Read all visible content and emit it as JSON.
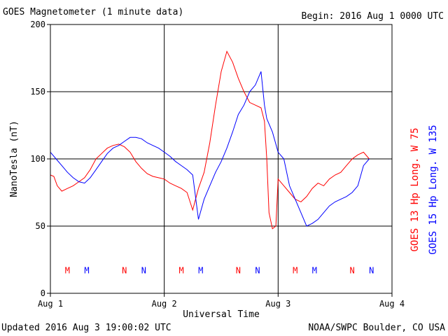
{
  "header": {
    "title": "GOES Magnetometer (1 minute data)",
    "begin": "Begin:  2016 Aug 1 0000 UTC"
  },
  "footer": {
    "updated": "Updated 2016 Aug  3 19:00:02 UTC",
    "credit": "NOAA/SWPC Boulder, CO USA"
  },
  "colors": {
    "goes13": "#ff0000",
    "goes15": "#0000ff",
    "grid": "#000000"
  },
  "chart_data": {
    "type": "line",
    "title": "GOES Magnetometer (1 minute data)",
    "xlabel": "Universal Time",
    "ylabel": "NanoTesla (nT)",
    "xlim": [
      0,
      3
    ],
    "ylim": [
      0,
      200
    ],
    "grid": true,
    "x_ticks": [
      {
        "value": 0,
        "label": "Aug 1"
      },
      {
        "value": 1,
        "label": "Aug 2"
      },
      {
        "value": 2,
        "label": "Aug 3"
      },
      {
        "value": 3,
        "label": "Aug 4"
      }
    ],
    "y_ticks": [
      {
        "value": 0,
        "label": "0"
      },
      {
        "value": 50,
        "label": "50"
      },
      {
        "value": 100,
        "label": "100"
      },
      {
        "value": 150,
        "label": "150"
      },
      {
        "value": 200,
        "label": "200"
      }
    ],
    "series": [
      {
        "name": "GOES 13 Hp  Long. W 75",
        "color": "#ff0000",
        "x": [
          0,
          0.03,
          0.06,
          0.1,
          0.15,
          0.2,
          0.25,
          0.3,
          0.35,
          0.4,
          0.45,
          0.5,
          0.55,
          0.6,
          0.65,
          0.7,
          0.75,
          0.8,
          0.85,
          0.9,
          0.95,
          1.0,
          1.05,
          1.1,
          1.15,
          1.2,
          1.25,
          1.3,
          1.35,
          1.4,
          1.45,
          1.5,
          1.55,
          1.6,
          1.65,
          1.7,
          1.75,
          1.8,
          1.85,
          1.88,
          1.9,
          1.92,
          1.95,
          1.98,
          2.0,
          2.05,
          2.1,
          2.15,
          2.2,
          2.25,
          2.3,
          2.35,
          2.4,
          2.45,
          2.5,
          2.55,
          2.6,
          2.65,
          2.7,
          2.75,
          2.8
        ],
        "values": [
          88,
          87,
          80,
          76,
          78,
          80,
          83,
          86,
          92,
          100,
          104,
          108,
          110,
          111,
          109,
          105,
          98,
          93,
          89,
          87,
          86,
          85,
          82,
          80,
          78,
          75,
          62,
          78,
          90,
          112,
          140,
          165,
          180,
          172,
          160,
          150,
          142,
          140,
          138,
          128,
          100,
          60,
          48,
          50,
          85,
          80,
          75,
          70,
          68,
          72,
          78,
          82,
          80,
          85,
          88,
          90,
          95,
          100,
          103,
          105,
          100
        ]
      },
      {
        "name": "GOES 15 Hp  Long. W 135",
        "color": "#0000ff",
        "x": [
          0,
          0.05,
          0.1,
          0.15,
          0.2,
          0.25,
          0.3,
          0.35,
          0.4,
          0.45,
          0.5,
          0.55,
          0.6,
          0.65,
          0.7,
          0.75,
          0.8,
          0.85,
          0.9,
          0.95,
          1.0,
          1.05,
          1.1,
          1.15,
          1.2,
          1.25,
          1.3,
          1.35,
          1.4,
          1.45,
          1.5,
          1.55,
          1.6,
          1.65,
          1.7,
          1.75,
          1.8,
          1.85,
          1.88,
          1.9,
          1.95,
          2.0,
          2.05,
          2.1,
          2.15,
          2.2,
          2.25,
          2.3,
          2.35,
          2.4,
          2.45,
          2.5,
          2.55,
          2.6,
          2.65,
          2.7,
          2.75,
          2.8
        ],
        "values": [
          105,
          100,
          95,
          90,
          86,
          83,
          82,
          86,
          92,
          98,
          104,
          108,
          110,
          113,
          116,
          116,
          115,
          112,
          110,
          108,
          105,
          102,
          98,
          95,
          92,
          88,
          55,
          70,
          80,
          90,
          98,
          108,
          120,
          133,
          140,
          150,
          155,
          165,
          140,
          130,
          120,
          105,
          100,
          80,
          70,
          60,
          50,
          52,
          55,
          60,
          65,
          68,
          70,
          72,
          75,
          80,
          95,
          100
        ]
      }
    ],
    "side_labels": [
      {
        "text": "GOES 13 Hp  Long. W 75",
        "color": "#ff0000"
      },
      {
        "text": "GOES 15 Hp  Long. W 135",
        "color": "#0000ff"
      }
    ],
    "markers": [
      {
        "label": "M",
        "x": 0.15,
        "y": 17,
        "color": "#ff0000"
      },
      {
        "label": "M",
        "x": 0.32,
        "y": 17,
        "color": "#0000ff"
      },
      {
        "label": "N",
        "x": 0.65,
        "y": 17,
        "color": "#ff0000"
      },
      {
        "label": "N",
        "x": 0.82,
        "y": 17,
        "color": "#0000ff"
      },
      {
        "label": "M",
        "x": 1.15,
        "y": 17,
        "color": "#ff0000"
      },
      {
        "label": "M",
        "x": 1.32,
        "y": 17,
        "color": "#0000ff"
      },
      {
        "label": "N",
        "x": 1.65,
        "y": 17,
        "color": "#ff0000"
      },
      {
        "label": "N",
        "x": 1.82,
        "y": 17,
        "color": "#0000ff"
      },
      {
        "label": "M",
        "x": 2.15,
        "y": 17,
        "color": "#ff0000"
      },
      {
        "label": "M",
        "x": 2.32,
        "y": 17,
        "color": "#0000ff"
      },
      {
        "label": "N",
        "x": 2.65,
        "y": 17,
        "color": "#ff0000"
      },
      {
        "label": "N",
        "x": 2.82,
        "y": 17,
        "color": "#0000ff"
      }
    ]
  }
}
